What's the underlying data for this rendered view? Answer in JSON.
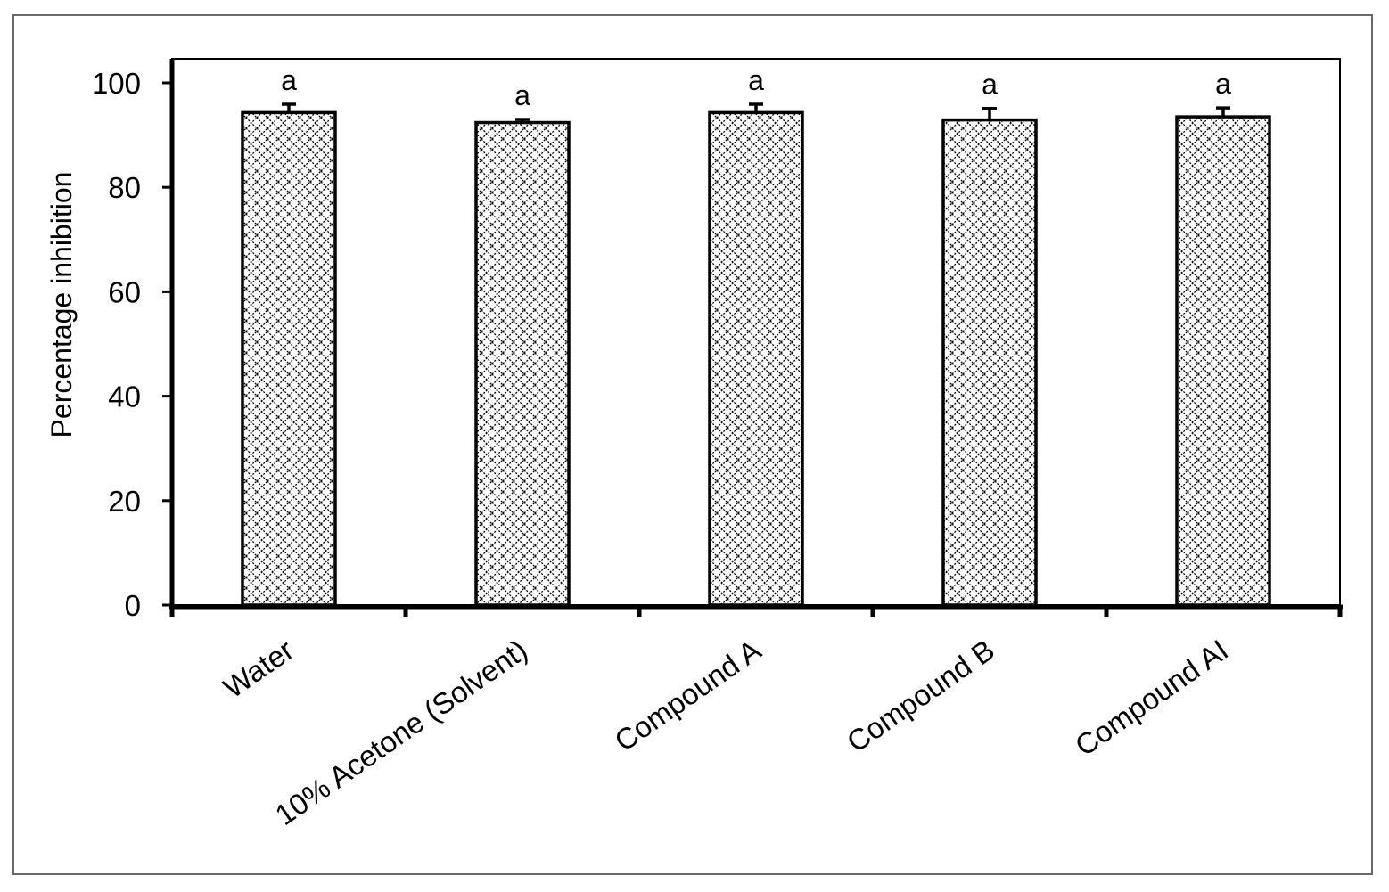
{
  "chart_data": {
    "type": "bar",
    "title": "",
    "xlabel": "",
    "ylabel": "Percentage inhibition",
    "ylim": [
      0,
      100
    ],
    "yticks": [
      0,
      20,
      40,
      60,
      80,
      100
    ],
    "grid": false,
    "categories": [
      "Water",
      "10% Acetone (Solvent)",
      "Compound A",
      "Compound B",
      "Compound AI"
    ],
    "values": [
      94.3,
      92.4,
      94.3,
      92.9,
      93.5
    ],
    "errors": [
      1.6,
      0.6,
      1.6,
      2.2,
      1.7
    ],
    "significance_letters": [
      "a",
      "a",
      "a",
      "a",
      "a"
    ],
    "bar_fill": "crosshatch",
    "bar_color": "#000000"
  }
}
